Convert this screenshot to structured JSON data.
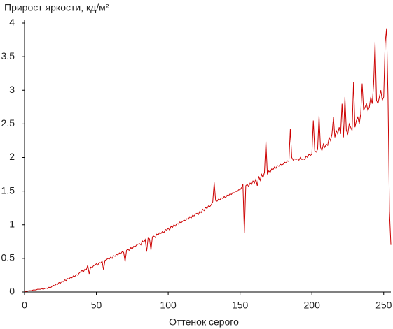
{
  "chart_data": {
    "type": "line",
    "title": "Прирост яркости, кд/м²",
    "x_label": "Оттенок серого",
    "x": [
      0,
      1,
      2,
      3,
      4,
      5,
      6,
      7,
      8,
      9,
      10,
      11,
      12,
      13,
      14,
      15,
      16,
      17,
      18,
      19,
      20,
      21,
      22,
      23,
      24,
      25,
      26,
      27,
      28,
      29,
      30,
      31,
      32,
      33,
      34,
      35,
      36,
      37,
      38,
      39,
      40,
      41,
      42,
      43,
      44,
      45,
      46,
      47,
      48,
      49,
      50,
      51,
      52,
      53,
      54,
      55,
      56,
      57,
      58,
      59,
      60,
      61,
      62,
      63,
      64,
      65,
      66,
      67,
      68,
      69,
      70,
      71,
      72,
      73,
      74,
      75,
      76,
      77,
      78,
      79,
      80,
      81,
      82,
      83,
      84,
      85,
      86,
      87,
      88,
      89,
      90,
      91,
      92,
      93,
      94,
      95,
      96,
      97,
      98,
      99,
      100,
      101,
      102,
      103,
      104,
      105,
      106,
      107,
      108,
      109,
      110,
      111,
      112,
      113,
      114,
      115,
      116,
      117,
      118,
      119,
      120,
      121,
      122,
      123,
      124,
      125,
      126,
      127,
      128,
      129,
      130,
      131,
      132,
      133,
      134,
      135,
      136,
      137,
      138,
      139,
      140,
      141,
      142,
      143,
      144,
      145,
      146,
      147,
      148,
      149,
      150,
      151,
      152,
      153,
      154,
      155,
      156,
      157,
      158,
      159,
      160,
      161,
      162,
      163,
      164,
      165,
      166,
      167,
      168,
      169,
      170,
      171,
      172,
      173,
      174,
      175,
      176,
      177,
      178,
      179,
      180,
      181,
      182,
      183,
      184,
      185,
      186,
      187,
      188,
      189,
      190,
      191,
      192,
      193,
      194,
      195,
      196,
      197,
      198,
      199,
      200,
      201,
      202,
      203,
      204,
      205,
      206,
      207,
      208,
      209,
      210,
      211,
      212,
      213,
      214,
      215,
      216,
      217,
      218,
      219,
      220,
      221,
      222,
      223,
      224,
      225,
      226,
      227,
      228,
      229,
      230,
      231,
      232,
      233,
      234,
      235,
      236,
      237,
      238,
      239,
      240,
      241,
      242,
      243,
      244,
      245,
      246,
      247,
      248,
      249,
      250,
      251,
      252,
      253,
      254,
      255
    ],
    "series": [
      {
        "color": "#cc0000",
        "values": [
          0,
          0.01,
          0.01,
          0.02,
          0.02,
          0.02,
          0.03,
          0.03,
          0.03,
          0.04,
          0.04,
          0.04,
          0.05,
          0.04,
          0.05,
          0.06,
          0.05,
          0.07,
          0.06,
          0.08,
          0.1,
          0.09,
          0.12,
          0.11,
          0.14,
          0.13,
          0.16,
          0.15,
          0.18,
          0.17,
          0.2,
          0.19,
          0.22,
          0.21,
          0.24,
          0.23,
          0.26,
          0.25,
          0.28,
          0.3,
          0.32,
          0.3,
          0.34,
          0.33,
          0.4,
          0.27,
          0.37,
          0.36,
          0.39,
          0.4,
          0.42,
          0.4,
          0.44,
          0.43,
          0.46,
          0.33,
          0.47,
          0.48,
          0.5,
          0.49,
          0.52,
          0.5,
          0.54,
          0.53,
          0.56,
          0.55,
          0.58,
          0.57,
          0.6,
          0.59,
          0.45,
          0.62,
          0.63,
          0.62,
          0.66,
          0.64,
          0.68,
          0.67,
          0.7,
          0.71,
          0.72,
          0.7,
          0.76,
          0.74,
          0.78,
          0.6,
          0.8,
          0.79,
          0.62,
          0.82,
          0.83,
          0.81,
          0.86,
          0.85,
          0.88,
          0.87,
          0.9,
          0.88,
          0.93,
          0.92,
          0.95,
          0.92,
          0.98,
          0.96,
          1.0,
          0.98,
          1.02,
          1.01,
          1.04,
          1.03,
          1.05,
          1.07,
          1.06,
          1.09,
          1.08,
          1.12,
          1.1,
          1.14,
          1.13,
          1.16,
          1.17,
          1.15,
          1.2,
          1.18,
          1.23,
          1.21,
          1.26,
          1.24,
          1.28,
          1.27,
          1.3,
          1.34,
          1.63,
          1.36,
          1.35,
          1.38,
          1.37,
          1.4,
          1.39,
          1.42,
          1.4,
          1.44,
          1.43,
          1.46,
          1.45,
          1.48,
          1.47,
          1.5,
          1.49,
          1.52,
          1.52,
          1.55,
          1.6,
          0.88,
          1.58,
          1.6,
          1.57,
          1.62,
          1.6,
          1.65,
          1.62,
          1.68,
          1.58,
          1.72,
          1.66,
          1.75,
          1.7,
          1.78,
          2.24,
          1.76,
          1.8,
          1.78,
          1.83,
          1.82,
          1.86,
          1.84,
          1.88,
          1.87,
          1.9,
          1.89,
          1.9,
          1.93,
          1.92,
          1.95,
          1.94,
          2.42,
          2.0,
          1.96,
          1.98,
          1.97,
          1.98,
          1.96,
          2.0,
          1.97,
          1.98,
          1.97,
          2.02,
          2.0,
          2.05,
          2.03,
          2.05,
          2.55,
          2.1,
          2.08,
          2.12,
          2.62,
          2.15,
          2.1,
          2.2,
          2.15,
          2.2,
          2.18,
          2.3,
          2.25,
          2.35,
          2.6,
          2.3,
          2.4,
          2.35,
          2.45,
          2.35,
          2.8,
          2.3,
          2.9,
          2.4,
          2.35,
          2.5,
          2.45,
          2.4,
          3.12,
          2.45,
          2.55,
          2.6,
          2.5,
          2.65,
          3.1,
          2.7,
          2.75,
          2.8,
          2.7,
          2.75,
          2.9,
          2.8,
          3.1,
          3.72,
          2.85,
          2.8,
          2.9,
          3.0,
          2.85,
          2.9,
          3.7,
          3.92,
          2.9,
          1.2,
          0.7
        ]
      }
    ],
    "xlim": [
      0,
      255
    ],
    "ylim": [
      0,
      4
    ],
    "xticks": [
      0,
      50,
      100,
      150,
      200,
      250
    ],
    "yticks": [
      0,
      0.5,
      1,
      1.5,
      2,
      2.5,
      3,
      3.5,
      4
    ]
  }
}
